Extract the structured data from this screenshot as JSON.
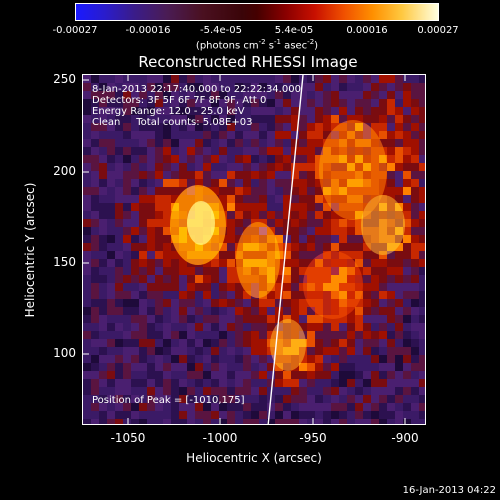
{
  "colorbar": {
    "ticks": [
      "-0.00027",
      "-0.00016",
      "-5.4e-05",
      "5.4e-05",
      "0.00016",
      "0.00027"
    ],
    "units_prefix": "(photons cm",
    "units_exp1": "-2",
    "units_mid1": " s",
    "units_exp2": "-1",
    "units_mid2": " asec",
    "units_exp3": "-2",
    "units_suffix": ")"
  },
  "title": "Reconstructed RHESSI Image",
  "annotations": {
    "time_range": "8-Jan-2013 22:17:40.000 to 22:22:34.000",
    "detectors": "Detectors: 3F 5F 6F 7F 8F 9F, Att 0",
    "energy_range": "Energy Range: 12.0 - 25.0 keV",
    "method_counts": "Clean     Total counts: 5.08E+03",
    "peak": "Position of Peak = [-1010,175]"
  },
  "axes": {
    "xlabel": "Heliocentric X (arcsec)",
    "ylabel": "Heliocentric Y (arcsec)",
    "xticks": [
      "-1050",
      "-1000",
      "-950",
      "-900"
    ],
    "yticks": [
      "250",
      "200",
      "150",
      "100"
    ],
    "xlim": [
      -1079,
      -888
    ],
    "ylim": [
      58,
      255
    ]
  },
  "colors": {
    "plot_background": "#2a1040",
    "limb_line": "#ffffff"
  },
  "timestamp": "16-Jan-2013 04:22"
}
